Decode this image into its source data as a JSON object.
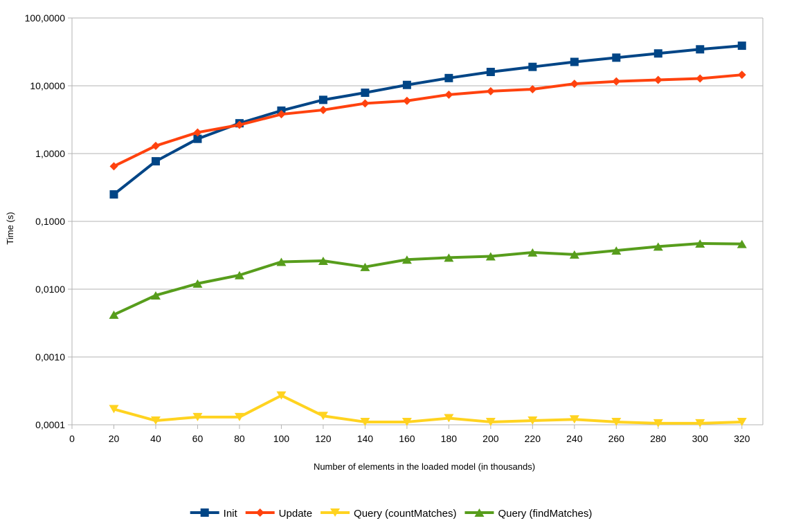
{
  "chart_data": {
    "type": "line",
    "xlabel": "Number of elements in the loaded model (in thousands)",
    "ylabel": "Time (s)",
    "y_scale": "log",
    "ylim": [
      0.0001,
      100
    ],
    "xlim": [
      0,
      330
    ],
    "x_ticks": [
      0,
      20,
      40,
      60,
      80,
      100,
      120,
      140,
      160,
      180,
      200,
      220,
      240,
      260,
      280,
      300,
      320
    ],
    "x_tick_labels": [
      "0",
      "20",
      "40",
      "60",
      "80",
      "100",
      "120",
      "140",
      "160",
      "180",
      "200",
      "220",
      "240",
      "260",
      "280",
      "300",
      "320"
    ],
    "y_ticks": [
      0.0001,
      0.001,
      0.01,
      0.1,
      1,
      10,
      100
    ],
    "y_tick_labels": [
      "0,0001",
      "0,0010",
      "0,0100",
      "0,1000",
      "1,0000",
      "10,0000",
      "100,0000"
    ],
    "grid": "horizontal",
    "legend_position": "bottom",
    "x": [
      20,
      40,
      60,
      80,
      100,
      120,
      140,
      160,
      180,
      200,
      220,
      240,
      260,
      280,
      300,
      320
    ],
    "series": [
      {
        "name": "Init",
        "color": "#004586",
        "marker": "square",
        "values": [
          0.25,
          0.77,
          1.65,
          2.8,
          4.3,
          6.2,
          7.9,
          10.3,
          13.0,
          16.0,
          19.0,
          22.5,
          26.0,
          30.0,
          34.5,
          39.0
        ]
      },
      {
        "name": "Update",
        "color": "#ff420e",
        "marker": "diamond",
        "values": [
          0.65,
          1.3,
          2.05,
          2.65,
          3.8,
          4.4,
          5.5,
          6.0,
          7.4,
          8.3,
          8.9,
          10.7,
          11.6,
          12.2,
          12.8,
          14.5
        ]
      },
      {
        "name": "Query (countMatches)",
        "color": "#ffd320",
        "marker": "triangle-down",
        "values": [
          0.00017,
          0.000115,
          0.00013,
          0.00013,
          0.00027,
          0.000135,
          0.00011,
          0.00011,
          0.000125,
          0.00011,
          0.000115,
          0.00012,
          0.00011,
          0.000105,
          0.000105,
          0.00011
        ]
      },
      {
        "name": "Query (findMatches)",
        "color": "#579d1c",
        "marker": "triangle-up",
        "values": [
          0.0042,
          0.0081,
          0.0121,
          0.0161,
          0.0253,
          0.0262,
          0.0213,
          0.0273,
          0.0292,
          0.0305,
          0.0348,
          0.0325,
          0.0372,
          0.0425,
          0.0472,
          0.0465
        ]
      }
    ]
  }
}
